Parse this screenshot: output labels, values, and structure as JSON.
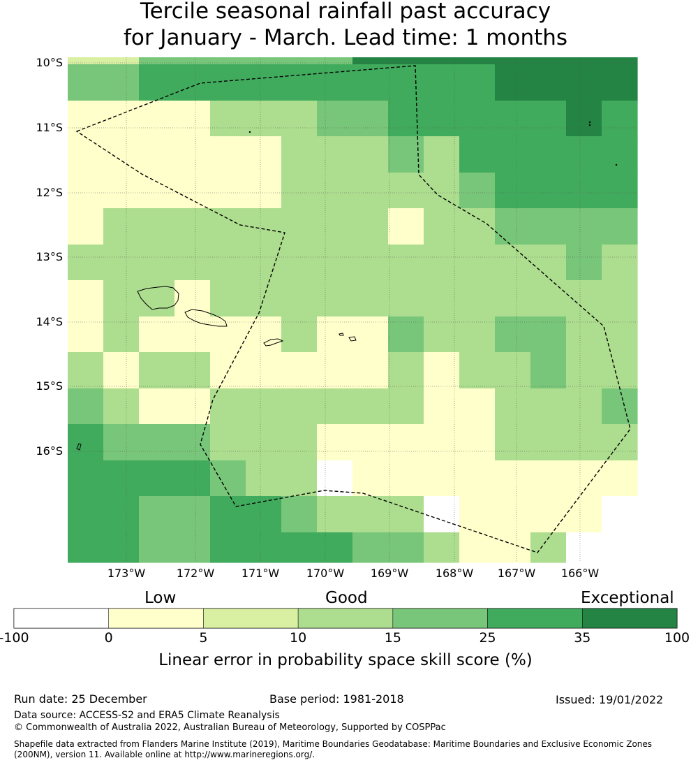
{
  "title_line1": "Tercile seasonal rainfall past accuracy",
  "title_line2": "for January - March. Lead time: 1 months",
  "map": {
    "lat_labels": [
      "10°S",
      "11°S",
      "12°S",
      "13°S",
      "14°S",
      "15°S",
      "16°S"
    ],
    "lon_labels": [
      "173°W",
      "172°W",
      "171°W",
      "170°W",
      "169°W",
      "168°W",
      "167°W",
      "166°W"
    ],
    "grid": [
      [
        1,
        1,
        3,
        3,
        3,
        3,
        3,
        3,
        5,
        5,
        5,
        5,
        5,
        5,
        5,
        5
      ],
      [
        3,
        3,
        4,
        4,
        4,
        4,
        4,
        4,
        4,
        4,
        4,
        4,
        5,
        5,
        5,
        5
      ],
      [
        0,
        0,
        0,
        0,
        2,
        2,
        2,
        3,
        3,
        4,
        4,
        4,
        4,
        4,
        5,
        4
      ],
      [
        0,
        0,
        0,
        0,
        0,
        0,
        2,
        2,
        2,
        3,
        2,
        4,
        4,
        4,
        4,
        4
      ],
      [
        0,
        0,
        0,
        0,
        0,
        0,
        2,
        2,
        2,
        2,
        2,
        3,
        4,
        4,
        4,
        4
      ],
      [
        0,
        2,
        2,
        2,
        2,
        2,
        2,
        2,
        2,
        0,
        2,
        2,
        3,
        3,
        3,
        3
      ],
      [
        2,
        2,
        2,
        2,
        2,
        2,
        2,
        2,
        2,
        2,
        2,
        2,
        2,
        2,
        3,
        2
      ],
      [
        0,
        2,
        2,
        0,
        2,
        2,
        2,
        2,
        2,
        2,
        2,
        2,
        2,
        2,
        2,
        2
      ],
      [
        0,
        2,
        0,
        0,
        0,
        0,
        2,
        0,
        0,
        3,
        2,
        2,
        3,
        3,
        2,
        2
      ],
      [
        2,
        0,
        2,
        2,
        0,
        0,
        0,
        0,
        0,
        2,
        0,
        2,
        2,
        3,
        2,
        2
      ],
      [
        3,
        2,
        0,
        0,
        2,
        2,
        2,
        2,
        2,
        2,
        0,
        0,
        2,
        2,
        2,
        3
      ],
      [
        4,
        3,
        3,
        3,
        2,
        2,
        2,
        0,
        0,
        0,
        0,
        0,
        2,
        2,
        2,
        2
      ],
      [
        4,
        4,
        4,
        4,
        3,
        2,
        2,
        -1,
        0,
        0,
        0,
        0,
        0,
        0,
        0,
        0
      ],
      [
        4,
        4,
        3,
        3,
        4,
        4,
        3,
        2,
        2,
        2,
        -1,
        0,
        0,
        0,
        0,
        -1
      ],
      [
        4,
        4,
        3,
        3,
        4,
        4,
        4,
        4,
        3,
        3,
        2,
        0,
        0,
        2,
        -1,
        -1
      ]
    ]
  },
  "legend": {
    "categories": [
      "Low",
      "Good",
      "Exceptional"
    ],
    "ticks": [
      "-100",
      "0",
      "5",
      "10",
      "15",
      "25",
      "35",
      "100"
    ],
    "colors": [
      "#ffffff",
      "#ffffcc",
      "#d9f0a3",
      "#addd8e",
      "#78c679",
      "#41ab5d",
      "#238443"
    ],
    "label": "Linear error in probability space skill score (%)"
  },
  "footer": {
    "run_date": "Run date: 25 December",
    "base_period": "Base period: 1981-2018",
    "issued": "Issued: 19/01/2022",
    "data_source": "Data source: ACCESS-S2 and ERA5 Climate Reanalysis",
    "copyright": "© Commonwealth of Australia 2022, Australian Bureau of Meteorology, Supported by COSPPac",
    "shapefile1": "Shapefile data extracted from Flanders Marine Institute (2019), Maritime Boundaries Geodatabase: Maritime Boundaries and Exclusive Economic Zones",
    "shapefile2": "(200NM), version 11. Available online at http://www.marineregions.org/."
  }
}
